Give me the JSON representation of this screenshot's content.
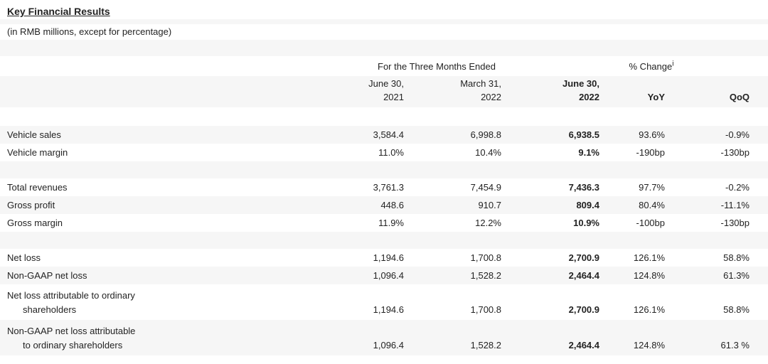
{
  "page": {
    "title": "Key Financial Results",
    "subtitle": "(in RMB millions, except for percentage)"
  },
  "table": {
    "period_header": "For the Three Months Ended",
    "change_header": "% Change",
    "change_footnote_marker": "i",
    "date_columns": [
      {
        "line1": "June 30,",
        "line2": "2021",
        "emphasis": false
      },
      {
        "line1": "March 31,",
        "line2": "2022",
        "emphasis": false
      },
      {
        "line1": "June 30,",
        "line2": "2022",
        "emphasis": true
      }
    ],
    "change_columns": [
      "YoY",
      "QoQ"
    ],
    "rows": [
      {
        "type": "data",
        "shaded": true,
        "label_lines": [
          "Vehicle sales"
        ],
        "values": [
          "3,584.4",
          "6,998.8",
          "6,938.5",
          "93.6%",
          "-0.9%"
        ]
      },
      {
        "type": "data",
        "shaded": false,
        "label_lines": [
          "Vehicle margin"
        ],
        "values": [
          "11.0%",
          "10.4%",
          "9.1%",
          "-190bp",
          "-130bp"
        ]
      },
      {
        "type": "spacer",
        "shaded": true
      },
      {
        "type": "data",
        "shaded": false,
        "label_lines": [
          "Total revenues"
        ],
        "values": [
          "3,761.3",
          "7,454.9",
          "7,436.3",
          "97.7%",
          "-0.2%"
        ]
      },
      {
        "type": "data",
        "shaded": true,
        "label_lines": [
          "Gross profit"
        ],
        "values": [
          "448.6",
          "910.7",
          "809.4",
          "80.4%",
          "-11.1%"
        ]
      },
      {
        "type": "data",
        "shaded": false,
        "label_lines": [
          "Gross margin"
        ],
        "values": [
          "11.9%",
          "12.2%",
          "10.9%",
          "-100bp",
          "-130bp"
        ]
      },
      {
        "type": "spacer",
        "shaded": true
      },
      {
        "type": "data",
        "shaded": false,
        "label_lines": [
          "Net loss"
        ],
        "values": [
          "1,194.6",
          "1,700.8",
          "2,700.9",
          "126.1%",
          "58.8%"
        ]
      },
      {
        "type": "data",
        "shaded": true,
        "label_lines": [
          "Non-GAAP net loss"
        ],
        "values": [
          "1,096.4",
          "1,528.2",
          "2,464.4",
          "124.8%",
          "61.3%"
        ]
      },
      {
        "type": "data",
        "shaded": false,
        "label_lines": [
          "Net loss attributable to ordinary",
          "shareholders"
        ],
        "values": [
          "1,194.6",
          "1,700.8",
          "2,700.9",
          "126.1%",
          "58.8%"
        ]
      },
      {
        "type": "data",
        "shaded": true,
        "label_lines": [
          "Non-GAAP net loss attributable",
          "to ordinary shareholders"
        ],
        "values": [
          "1,096.4",
          "1,528.2",
          "2,464.4",
          "124.8%",
          "61.3 %"
        ]
      }
    ],
    "bold_value_column_index": 2
  },
  "colors": {
    "stripe": "#f6f6f6",
    "text": "#232323"
  }
}
